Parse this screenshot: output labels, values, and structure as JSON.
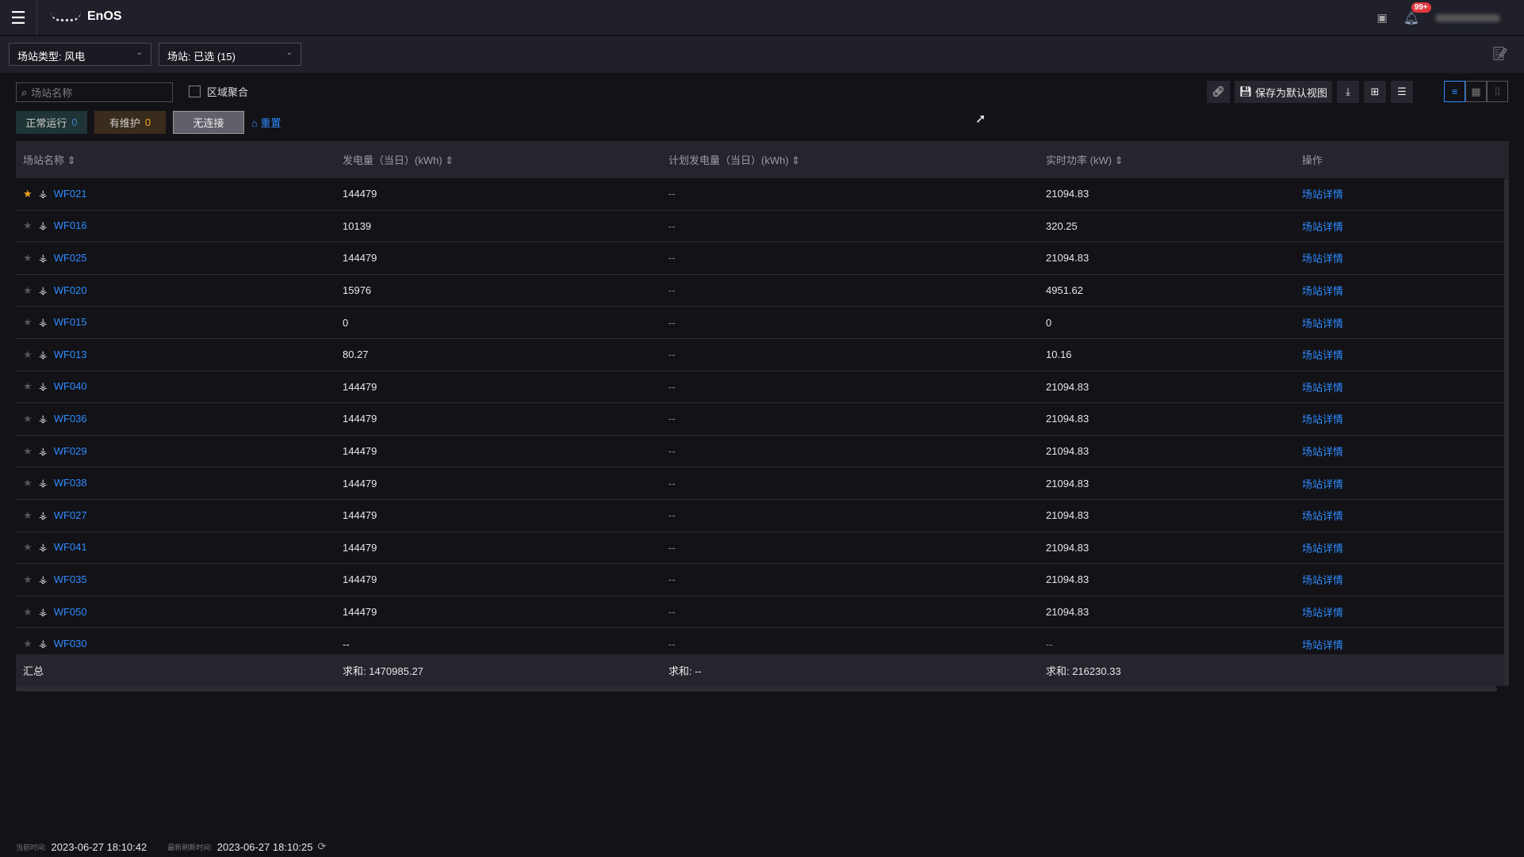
{
  "app": {
    "brand": "EnOS",
    "notifications": "99+"
  },
  "filters": {
    "site_type": "场站类型: 风电",
    "site": "场站: 已选 (15)"
  },
  "search": {
    "placeholder": "场站名称"
  },
  "region_aggregate": "区域聚合",
  "status": [
    {
      "label": "正常运行",
      "count": "0",
      "bg": "#1f3434",
      "color": "#3b82c4"
    },
    {
      "label": "有维护",
      "count": "0",
      "bg": "#3a2c1c",
      "color": "#f0a81e"
    },
    {
      "label": "无连接",
      "count": "",
      "bg": "#5f6069",
      "color": "#fff"
    }
  ],
  "reset": "重置",
  "toolbar": {
    "save_default": "保存为默认视图"
  },
  "table": {
    "headers": [
      "场站名称",
      "发电量（当日）(kWh)",
      "计划发电量（当日）(kWh)",
      "实时功率 (kW)",
      "操作"
    ],
    "rows": [
      {
        "fav": true,
        "name": "WF021",
        "gen": "144479",
        "plan": "--",
        "power": "21094.83",
        "op": "场站详情"
      },
      {
        "fav": false,
        "name": "WF016",
        "gen": "10139",
        "plan": "--",
        "power": "320.25",
        "op": "场站详情"
      },
      {
        "fav": false,
        "name": "WF025",
        "gen": "144479",
        "plan": "--",
        "power": "21094.83",
        "op": "场站详情"
      },
      {
        "fav": false,
        "name": "WF020",
        "gen": "15976",
        "plan": "--",
        "power": "4951.62",
        "op": "场站详情"
      },
      {
        "fav": false,
        "name": "WF015",
        "gen": "0",
        "plan": "--",
        "power": "0",
        "op": "场站详情"
      },
      {
        "fav": false,
        "name": "WF013",
        "gen": "80.27",
        "plan": "--",
        "power": "10.16",
        "op": "场站详情"
      },
      {
        "fav": false,
        "name": "WF040",
        "gen": "144479",
        "plan": "--",
        "power": "21094.83",
        "op": "场站详情"
      },
      {
        "fav": false,
        "name": "WF036",
        "gen": "144479",
        "plan": "--",
        "power": "21094.83",
        "op": "场站详情"
      },
      {
        "fav": false,
        "name": "WF029",
        "gen": "144479",
        "plan": "--",
        "power": "21094.83",
        "op": "场站详情"
      },
      {
        "fav": false,
        "name": "WF038",
        "gen": "144479",
        "plan": "--",
        "power": "21094.83",
        "op": "场站详情"
      },
      {
        "fav": false,
        "name": "WF027",
        "gen": "144479",
        "plan": "--",
        "power": "21094.83",
        "op": "场站详情"
      },
      {
        "fav": false,
        "name": "WF041",
        "gen": "144479",
        "plan": "--",
        "power": "21094.83",
        "op": "场站详情"
      },
      {
        "fav": false,
        "name": "WF035",
        "gen": "144479",
        "plan": "--",
        "power": "21094.83",
        "op": "场站详情"
      },
      {
        "fav": false,
        "name": "WF050",
        "gen": "144479",
        "plan": "--",
        "power": "21094.83",
        "op": "场站详情"
      },
      {
        "fav": false,
        "name": "WF030",
        "gen": "--",
        "plan": "--",
        "power": "--",
        "op": "场站详情"
      }
    ],
    "summary": {
      "label": "汇总",
      "gen": "求和: 1470985.27",
      "plan": "求和: --",
      "power": "求和: 216230.33"
    }
  },
  "footer": {
    "current_label": "当前时间:",
    "current": "2023-06-27 18:10:42",
    "refresh_label": "最新刷新时间:",
    "refresh": "2023-06-27 18:10:25"
  }
}
